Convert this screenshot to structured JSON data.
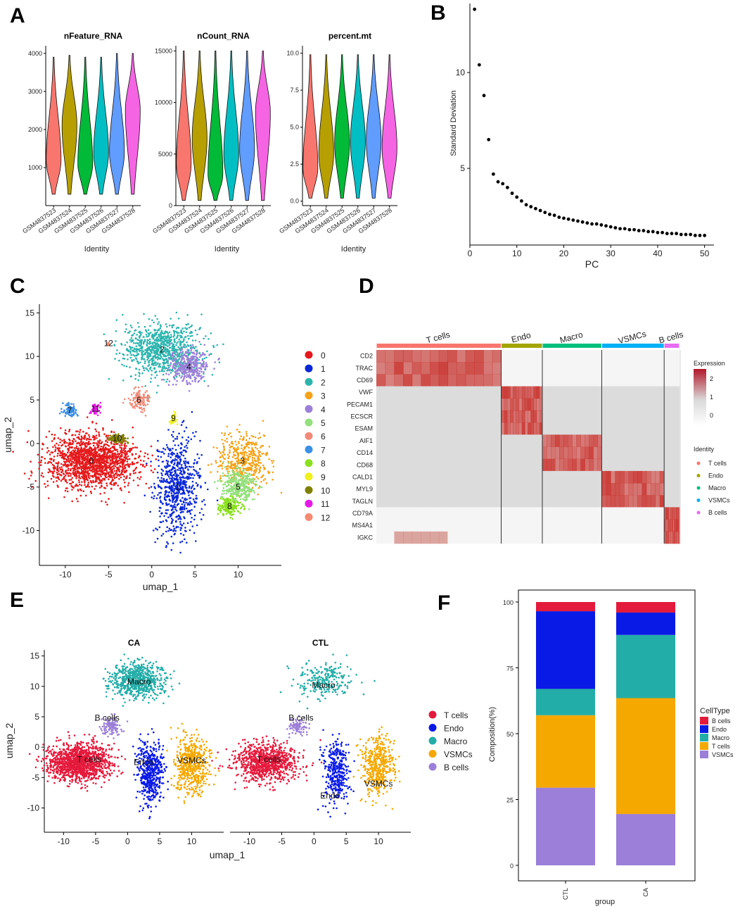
{
  "panels": {
    "A": "A",
    "B": "B",
    "C": "C",
    "D": "D",
    "E": "E",
    "F": "F"
  },
  "chart_data": [
    {
      "id": "A",
      "type": "violin",
      "identity_label": "Identity",
      "samples": [
        "GSM4837523",
        "GSM4837524",
        "GSM4837525",
        "GSM4837526",
        "GSM4837527",
        "GSM4837528"
      ],
      "sample_colors": [
        "#F8766D",
        "#B79F00",
        "#00BA38",
        "#00BFC4",
        "#619CFF",
        "#F564E3"
      ],
      "subplots": [
        {
          "title": "nFeature_RNA",
          "ylim": [
            0,
            4200
          ],
          "yticks": [
            1000,
            2000,
            3000,
            4000
          ],
          "ranges": [
            [
              300,
              3900
            ],
            [
              300,
              3950
            ],
            [
              300,
              3900
            ],
            [
              300,
              3900
            ],
            [
              300,
              4000
            ],
            [
              300,
              4000
            ]
          ],
          "peaks": [
            1200,
            2100,
            1100,
            1400,
            1400,
            2500
          ]
        },
        {
          "title": "nCount_RNA",
          "ylim": [
            0,
            15500
          ],
          "yticks": [
            0,
            5000,
            10000,
            15000
          ],
          "ranges": [
            [
              500,
              15000
            ],
            [
              500,
              15000
            ],
            [
              500,
              15000
            ],
            [
              500,
              15000
            ],
            [
              500,
              15000
            ],
            [
              500,
              15000
            ]
          ],
          "peaks": [
            4000,
            6500,
            3000,
            5000,
            5500,
            9000
          ]
        },
        {
          "title": "percent.mt",
          "ylim": [
            -0.3,
            10.5
          ],
          "yticks": [
            0.0,
            2.5,
            5.0,
            7.5,
            10.0
          ],
          "ranges": [
            [
              0.2,
              9.9
            ],
            [
              0.2,
              9.9
            ],
            [
              0.2,
              9.9
            ],
            [
              0.2,
              9.9
            ],
            [
              0.2,
              9.9
            ],
            [
              0.2,
              9.9
            ]
          ],
          "peaks": [
            2.2,
            3.2,
            3.9,
            4.0,
            4.1,
            3.6
          ]
        }
      ]
    },
    {
      "id": "B",
      "type": "scatter",
      "xlabel": "PC",
      "ylabel": "Standard Deviation",
      "xlim": [
        0,
        52
      ],
      "ylim": [
        1.0,
        13.6
      ],
      "xticks": [
        0,
        10,
        20,
        30,
        40,
        50
      ],
      "yticks": [
        5,
        10
      ],
      "x": [
        1,
        2,
        3,
        4,
        5,
        6,
        7,
        8,
        9,
        10,
        11,
        12,
        13,
        14,
        15,
        16,
        17,
        18,
        19,
        20,
        21,
        22,
        23,
        24,
        25,
        26,
        27,
        28,
        29,
        30,
        31,
        32,
        33,
        34,
        35,
        36,
        37,
        38,
        39,
        40,
        41,
        42,
        43,
        44,
        45,
        46,
        47,
        48,
        49,
        50
      ],
      "y": [
        13.3,
        10.4,
        8.8,
        6.5,
        4.7,
        4.3,
        4.2,
        4.0,
        3.7,
        3.5,
        3.3,
        3.1,
        3.0,
        2.9,
        2.8,
        2.7,
        2.6,
        2.55,
        2.45,
        2.4,
        2.35,
        2.3,
        2.25,
        2.2,
        2.15,
        2.1,
        2.1,
        2.05,
        2.0,
        1.95,
        1.9,
        1.85,
        1.85,
        1.8,
        1.8,
        1.75,
        1.75,
        1.7,
        1.7,
        1.65,
        1.65,
        1.6,
        1.6,
        1.6,
        1.55,
        1.55,
        1.55,
        1.5,
        1.5,
        1.5
      ]
    },
    {
      "id": "C",
      "type": "scatter",
      "xlabel": "umap_1",
      "ylabel": "umap_2",
      "xlim": [
        -13,
        15
      ],
      "ylim": [
        -14,
        16
      ],
      "xticks": [
        -10,
        -5,
        0,
        5,
        10
      ],
      "yticks": [
        -10,
        -5,
        0,
        5,
        10,
        15
      ],
      "legend": [
        "0",
        "1",
        "2",
        "3",
        "4",
        "5",
        "6",
        "7",
        "8",
        "9",
        "10",
        "11",
        "12"
      ],
      "colors": [
        "#E41A1C",
        "#0A28D6",
        "#2CB5AE",
        "#F5A31A",
        "#9C7FD8",
        "#93E07E",
        "#F08A78",
        "#3A8FE6",
        "#8AE01E",
        "#F0F01A",
        "#808000",
        "#E61AE6",
        "#F58A70"
      ],
      "cluster_centers": [
        [
          -7,
          -2
        ],
        [
          3,
          -5
        ],
        [
          1.2,
          10.8
        ],
        [
          10.5,
          -2
        ],
        [
          4.3,
          8.8
        ],
        [
          10,
          -5
        ],
        [
          -1.5,
          5
        ],
        [
          -9.5,
          3.8
        ],
        [
          9,
          -7.2
        ],
        [
          2.5,
          2.9
        ],
        [
          -4,
          0.6
        ],
        [
          -6.5,
          4
        ],
        [
          -5,
          11.5
        ]
      ],
      "cluster_spread": [
        [
          2.6,
          1.5
        ],
        [
          1.3,
          2.6
        ],
        [
          2.2,
          1.5
        ],
        [
          1.5,
          1.5
        ],
        [
          1.1,
          1
        ],
        [
          1,
          1
        ],
        [
          0.6,
          0.6
        ],
        [
          0.4,
          0.4
        ],
        [
          0.6,
          0.5
        ],
        [
          0.2,
          0.4
        ],
        [
          0.6,
          0.3
        ],
        [
          0.3,
          0.3
        ],
        [
          0.1,
          0.1
        ]
      ]
    },
    {
      "id": "D",
      "type": "heatmap",
      "groups": [
        "T cells",
        "Endo",
        "Macro",
        "VSMCs",
        "B cells"
      ],
      "group_colors": [
        "#F8766D",
        "#A3A500",
        "#00BF7D",
        "#00B0F6",
        "#E76BF3"
      ],
      "group_fraction": [
        0.41,
        0.135,
        0.195,
        0.205,
        0.05
      ],
      "genes": [
        "CD2",
        "TRAC",
        "CD69",
        "VWF",
        "PECAM1",
        "ECSCR",
        "ESAM",
        "AIF1",
        "CD14",
        "CD68",
        "CALD1",
        "MYL9",
        "TAGLN",
        "CD79A",
        "MS4A1",
        "IGKC"
      ],
      "gene_group": [
        0,
        0,
        0,
        1,
        1,
        1,
        1,
        2,
        2,
        2,
        3,
        3,
        3,
        4,
        4,
        4
      ],
      "legend_title": "Expression",
      "legend_ticks": [
        2,
        1,
        0
      ],
      "identity_title": "Identity"
    },
    {
      "id": "E",
      "type": "scatter",
      "xlabel": "umap_1",
      "ylabel": "umap_2",
      "facets": [
        "CA",
        "CTL"
      ],
      "xlim": [
        -13,
        15
      ],
      "ylim": [
        -14,
        16
      ],
      "xticks": [
        -10,
        -5,
        0,
        5,
        10
      ],
      "yticks": [
        -10,
        -5,
        0,
        5,
        10,
        15
      ],
      "legend": [
        "T cells",
        "Endo",
        "Macro",
        "VSMCs",
        "B cells"
      ],
      "colors": [
        "#E41A3C",
        "#0A1AE6",
        "#23ADA8",
        "#F5A800",
        "#9C7FD8"
      ]
    },
    {
      "id": "F",
      "type": "bar",
      "stacked": true,
      "xlabel": "group",
      "ylabel": "Composition(%)",
      "categories": [
        "CTL",
        "CA"
      ],
      "ylim": [
        0,
        100
      ],
      "yticks": [
        0,
        25,
        50,
        75,
        100
      ],
      "legend_title": "CellType",
      "series": [
        {
          "name": "VSMCs",
          "color": "#9C7FD8",
          "values": [
            29.5,
            19.5
          ]
        },
        {
          "name": "T cells",
          "color": "#F5A800",
          "values": [
            27.5,
            44
          ]
        },
        {
          "name": "Macro",
          "color": "#23ADA8",
          "values": [
            10,
            24
          ]
        },
        {
          "name": "Endo",
          "color": "#0A1AE6",
          "values": [
            29.5,
            8.5
          ]
        },
        {
          "name": "B cells",
          "color": "#E41A3C",
          "values": [
            3.5,
            4
          ]
        }
      ],
      "legend_order": [
        "B cells",
        "Endo",
        "Macro",
        "T cells",
        "VSMCs"
      ]
    }
  ]
}
